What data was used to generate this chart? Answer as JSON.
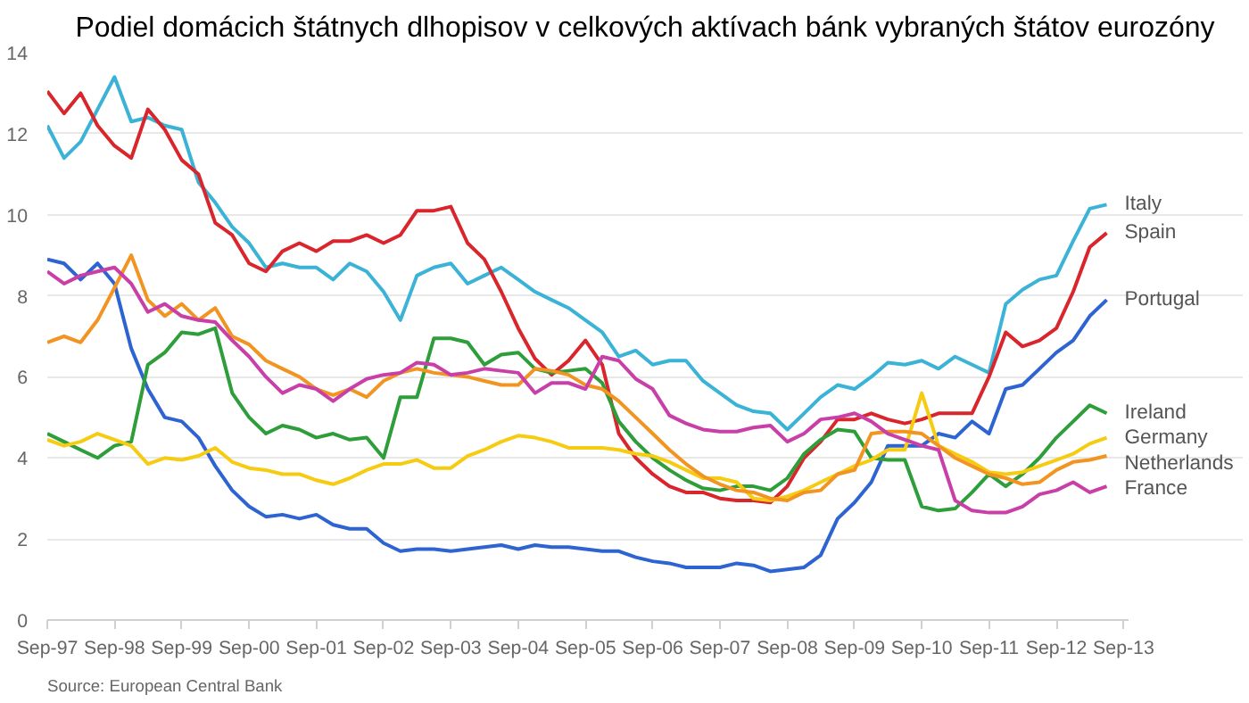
{
  "chart_data": {
    "type": "line",
    "title": "Podiel domácich štátnych dlhopisov v celkových aktívach bánk vybraných štátov eurozóny",
    "annotations": [
      "Source: European Central Bank"
    ],
    "x": [
      "1997-09",
      "1997-12",
      "1998-03",
      "1998-06",
      "1998-09",
      "1998-12",
      "1999-03",
      "1999-06",
      "1999-09",
      "1999-12",
      "2000-03",
      "2000-06",
      "2000-09",
      "2000-12",
      "2001-03",
      "2001-06",
      "2001-09",
      "2001-12",
      "2002-03",
      "2002-06",
      "2002-09",
      "2002-12",
      "2003-03",
      "2003-06",
      "2003-09",
      "2003-12",
      "2004-03",
      "2004-06",
      "2004-09",
      "2004-12",
      "2005-03",
      "2005-06",
      "2005-09",
      "2005-12",
      "2006-03",
      "2006-06",
      "2006-09",
      "2006-12",
      "2007-03",
      "2007-06",
      "2007-09",
      "2007-12",
      "2008-03",
      "2008-06",
      "2008-09",
      "2008-12",
      "2009-03",
      "2009-06",
      "2009-09",
      "2009-12",
      "2010-03",
      "2010-06",
      "2010-09",
      "2010-12",
      "2011-03",
      "2011-06",
      "2011-09",
      "2011-12",
      "2012-03",
      "2012-06",
      "2012-09",
      "2012-12",
      "2013-03",
      "2013-06"
    ],
    "xlim": [
      "1997-09",
      "2013-10"
    ],
    "xticks": [
      {
        "value": "1997-09",
        "label": "Sep-97"
      },
      {
        "value": "1998-09",
        "label": "Sep-98"
      },
      {
        "value": "1999-09",
        "label": "Sep-99"
      },
      {
        "value": "2000-09",
        "label": "Sep-00"
      },
      {
        "value": "2001-09",
        "label": "Sep-01"
      },
      {
        "value": "2002-09",
        "label": "Sep-02"
      },
      {
        "value": "2003-09",
        "label": "Sep-03"
      },
      {
        "value": "2004-09",
        "label": "Sep-04"
      },
      {
        "value": "2005-09",
        "label": "Sep-05"
      },
      {
        "value": "2006-09",
        "label": "Sep-06"
      },
      {
        "value": "2007-09",
        "label": "Sep-07"
      },
      {
        "value": "2008-09",
        "label": "Sep-08"
      },
      {
        "value": "2009-09",
        "label": "Sep-09"
      },
      {
        "value": "2010-09",
        "label": "Sep-10"
      },
      {
        "value": "2011-09",
        "label": "Sep-11"
      },
      {
        "value": "2012-09",
        "label": "Sep-12"
      },
      {
        "value": "2013-09",
        "label": "Sep-13"
      }
    ],
    "ylim": [
      0,
      14
    ],
    "yticks": [
      0,
      2,
      4,
      6,
      8,
      10,
      12,
      14
    ],
    "grid": "y",
    "legend": false,
    "series": [
      {
        "name": "Italy",
        "color": "#3bb3d6",
        "values": [
          12.2,
          11.4,
          11.8,
          12.6,
          13.4,
          12.3,
          12.4,
          12.2,
          12.1,
          10.8,
          10.3,
          9.7,
          9.3,
          8.7,
          8.8,
          8.7,
          8.7,
          8.4,
          8.8,
          8.6,
          8.1,
          7.4,
          8.5,
          8.7,
          8.8,
          8.3,
          8.5,
          8.7,
          8.4,
          8.1,
          7.9,
          7.7,
          7.4,
          7.1,
          6.5,
          6.65,
          6.3,
          6.4,
          6.4,
          5.9,
          5.6,
          5.3,
          5.15,
          5.1,
          4.7,
          5.1,
          5.5,
          5.8,
          5.7,
          6.0,
          6.35,
          6.3,
          6.4,
          6.2,
          6.5,
          6.3,
          6.1,
          7.8,
          8.15,
          8.4,
          8.5,
          9.35,
          10.15,
          10.25
        ]
      },
      {
        "name": "Spain",
        "color": "#d9262c",
        "values": [
          13.05,
          12.5,
          13.0,
          12.2,
          11.7,
          11.4,
          12.6,
          12.1,
          11.35,
          11.0,
          9.8,
          9.5,
          8.8,
          8.6,
          9.1,
          9.3,
          9.1,
          9.35,
          9.35,
          9.5,
          9.3,
          9.5,
          10.1,
          10.1,
          10.2,
          9.3,
          8.9,
          8.1,
          7.2,
          6.45,
          6.05,
          6.4,
          6.9,
          6.3,
          4.6,
          4.0,
          3.6,
          3.3,
          3.15,
          3.15,
          3.0,
          2.95,
          2.95,
          2.9,
          3.3,
          4.0,
          4.4,
          4.95,
          4.95,
          5.1,
          4.95,
          4.85,
          4.95,
          5.1,
          5.1,
          5.1,
          6.0,
          7.1,
          6.75,
          6.9,
          7.2,
          8.1,
          9.2,
          9.55
        ]
      },
      {
        "name": "Portugal",
        "color": "#2e64d1",
        "values": [
          8.9,
          8.8,
          8.4,
          8.8,
          8.3,
          6.7,
          5.7,
          5.0,
          4.9,
          4.5,
          3.8,
          3.2,
          2.8,
          2.55,
          2.6,
          2.5,
          2.6,
          2.35,
          2.25,
          2.25,
          1.9,
          1.7,
          1.75,
          1.75,
          1.7,
          1.75,
          1.8,
          1.85,
          1.75,
          1.85,
          1.8,
          1.8,
          1.75,
          1.7,
          1.7,
          1.55,
          1.45,
          1.4,
          1.3,
          1.3,
          1.3,
          1.4,
          1.35,
          1.2,
          1.25,
          1.3,
          1.6,
          2.5,
          2.9,
          3.4,
          4.3,
          4.3,
          4.3,
          4.6,
          4.5,
          4.9,
          4.6,
          5.7,
          5.8,
          6.2,
          6.6,
          6.9,
          7.5,
          7.9
        ]
      },
      {
        "name": "Ireland",
        "color": "#2e9e3a",
        "values": [
          4.6,
          4.4,
          4.2,
          4.0,
          4.3,
          4.4,
          6.3,
          6.6,
          7.1,
          7.05,
          7.2,
          5.6,
          5.0,
          4.6,
          4.8,
          4.7,
          4.5,
          4.6,
          4.45,
          4.5,
          4.0,
          5.5,
          5.5,
          6.95,
          6.95,
          6.85,
          6.3,
          6.55,
          6.6,
          6.2,
          6.1,
          6.15,
          6.2,
          5.85,
          4.9,
          4.4,
          4.0,
          3.7,
          3.45,
          3.25,
          3.2,
          3.3,
          3.3,
          3.2,
          3.5,
          4.1,
          4.45,
          4.7,
          4.65,
          4.0,
          3.95,
          3.95,
          2.8,
          2.7,
          2.75,
          3.15,
          3.6,
          3.3,
          3.6,
          4.0,
          4.5,
          4.9,
          5.3,
          5.1
        ]
      },
      {
        "name": "Germany",
        "color": "#f5cc12",
        "values": [
          4.45,
          4.3,
          4.4,
          4.6,
          4.45,
          4.3,
          3.85,
          4.0,
          3.95,
          4.05,
          4.25,
          3.9,
          3.75,
          3.7,
          3.6,
          3.6,
          3.45,
          3.35,
          3.5,
          3.7,
          3.85,
          3.85,
          3.95,
          3.75,
          3.75,
          4.05,
          4.2,
          4.4,
          4.55,
          4.5,
          4.4,
          4.25,
          4.25,
          4.25,
          4.2,
          4.1,
          4.05,
          3.9,
          3.7,
          3.5,
          3.5,
          3.4,
          3.0,
          2.95,
          3.05,
          3.2,
          3.4,
          3.6,
          3.8,
          3.95,
          4.2,
          4.2,
          5.6,
          4.3,
          4.1,
          3.9,
          3.65,
          3.6,
          3.65,
          3.8,
          3.95,
          4.1,
          4.35,
          4.5
        ]
      },
      {
        "name": "Netherlands",
        "color": "#f29422",
        "values": [
          6.85,
          7.0,
          6.85,
          7.4,
          8.2,
          9.0,
          7.9,
          7.5,
          7.8,
          7.4,
          7.7,
          7.0,
          6.8,
          6.4,
          6.2,
          6.0,
          5.7,
          5.55,
          5.7,
          5.5,
          5.9,
          6.1,
          6.2,
          6.1,
          6.05,
          6.0,
          5.9,
          5.8,
          5.8,
          6.2,
          6.15,
          6.05,
          5.8,
          5.7,
          5.4,
          5.0,
          4.6,
          4.2,
          3.85,
          3.55,
          3.35,
          3.2,
          3.15,
          3.0,
          2.95,
          3.15,
          3.2,
          3.6,
          3.7,
          4.6,
          4.65,
          4.65,
          4.6,
          4.3,
          4.0,
          3.8,
          3.6,
          3.5,
          3.35,
          3.4,
          3.7,
          3.9,
          3.95,
          4.05
        ]
      },
      {
        "name": "France",
        "color": "#c93fa8",
        "values": [
          8.6,
          8.3,
          8.5,
          8.6,
          8.7,
          8.3,
          7.6,
          7.8,
          7.5,
          7.4,
          7.35,
          6.9,
          6.5,
          6.0,
          5.6,
          5.8,
          5.7,
          5.4,
          5.7,
          5.95,
          6.05,
          6.1,
          6.35,
          6.3,
          6.05,
          6.1,
          6.2,
          6.15,
          6.1,
          5.6,
          5.85,
          5.85,
          5.7,
          6.5,
          6.4,
          5.95,
          5.7,
          5.05,
          4.85,
          4.7,
          4.65,
          4.65,
          4.75,
          4.8,
          4.4,
          4.6,
          4.95,
          5.0,
          5.1,
          4.9,
          4.6,
          4.45,
          4.3,
          4.2,
          2.95,
          2.7,
          2.65,
          2.65,
          2.8,
          3.1,
          3.2,
          3.4,
          3.15,
          3.3
        ]
      }
    ]
  }
}
